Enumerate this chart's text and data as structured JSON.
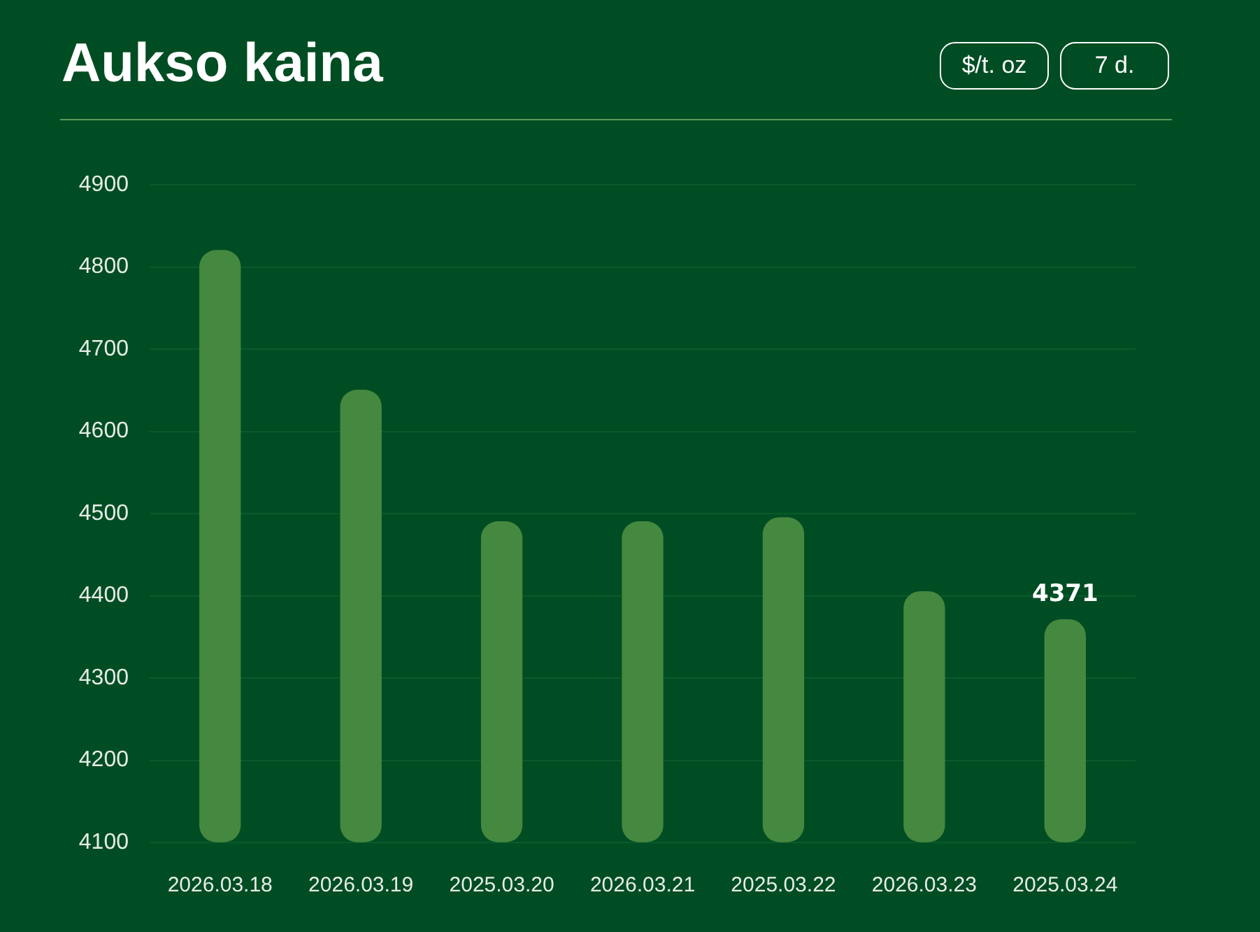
{
  "chart_data": {
    "type": "bar",
    "title": "Aukso kaina",
    "annotations": [
      "$/t. oz",
      "7 d."
    ],
    "categories": [
      "2026.03.18",
      "2026.03.19",
      "2025.03.20",
      "2026.03.21",
      "2025.03.22",
      "2026.03.23",
      "2025.03.24"
    ],
    "values": [
      4820,
      4650,
      4490,
      4490,
      4495,
      4405,
      4371
    ],
    "color": "#45883f",
    "value_labels": [
      null,
      null,
      null,
      null,
      null,
      null,
      "4371"
    ],
    "ylim": [
      4100,
      4900
    ],
    "yticks": [
      4100,
      4200,
      4300,
      4400,
      4500,
      4600,
      4700,
      4800,
      4900
    ],
    "grid": "y"
  }
}
